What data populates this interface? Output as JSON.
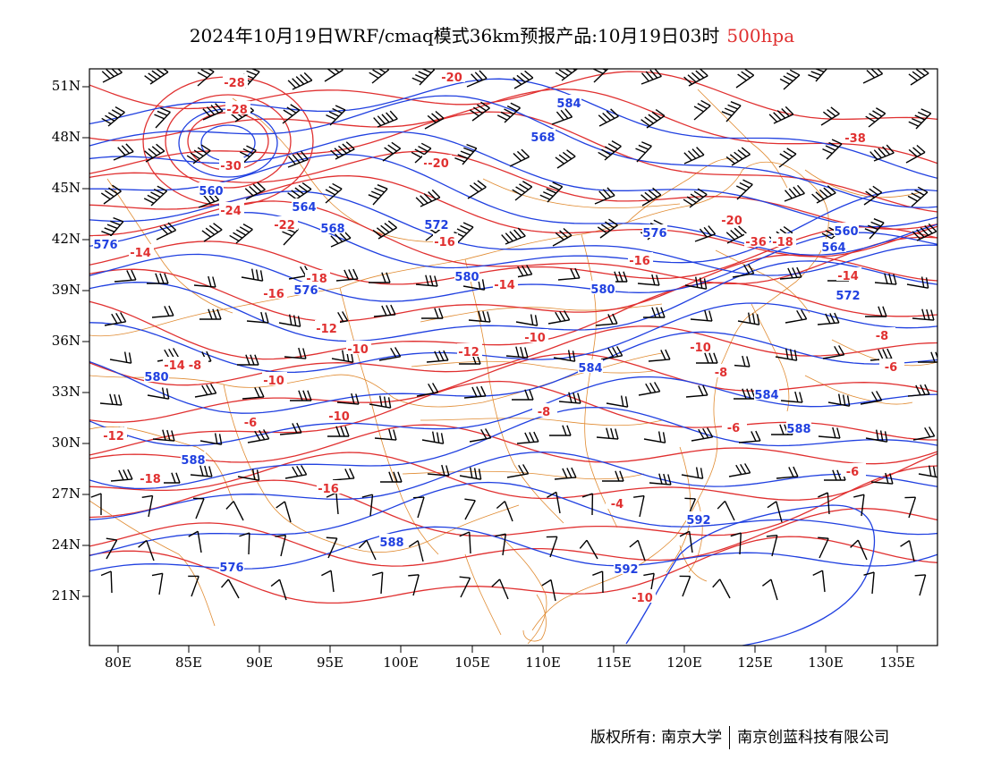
{
  "title": {
    "main": "2024年10月19日WRF/cmaq模式36km预报产品:10月19日03时",
    "level": "500hpa",
    "level_color": "#e03030"
  },
  "map": {
    "lat_labels": [
      "51N",
      "48N",
      "45N",
      "42N",
      "39N",
      "36N",
      "33N",
      "30N",
      "27N",
      "24N",
      "21N"
    ],
    "lon_labels": [
      "80E",
      "85E",
      "90E",
      "95E",
      "100E",
      "105E",
      "110E",
      "115E",
      "120E",
      "125E",
      "130E",
      "135E"
    ],
    "contour_colors": {
      "height": "#2040e0",
      "temperature": "#e03030",
      "boundary": "#e08a30",
      "wind": "#000000"
    },
    "height_labels": [
      "584",
      "568",
      "560",
      "564",
      "568",
      "572",
      "576",
      "576",
      "576",
      "580",
      "580",
      "580",
      "584",
      "584",
      "588",
      "588",
      "592",
      "592",
      "588",
      "576",
      "572",
      "560",
      "564"
    ],
    "temperature_labels": [
      "-28",
      "-28",
      "-30",
      "-20",
      "-18",
      "-24",
      "-22",
      "-20",
      "-18",
      "-16",
      "-18",
      "-16",
      "-14",
      "-14",
      "-16",
      "-14",
      "-12",
      "-10",
      "-12",
      "-10",
      "-10",
      "-8",
      "-10",
      "-8",
      "-10",
      "-8",
      "-8",
      "-6",
      "-6",
      "-6",
      "-4",
      "-10",
      "-12",
      "-14",
      "-16",
      "-18",
      "-20",
      "-36",
      "-38",
      "-6"
    ]
  },
  "footer": {
    "copyright": "版权所有: 南京大学",
    "company": "南京创蓝科技有限公司"
  }
}
